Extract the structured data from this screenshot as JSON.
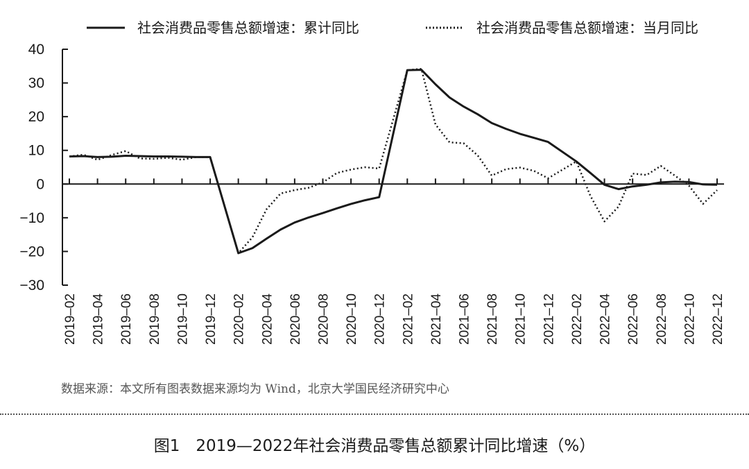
{
  "chart_data": {
    "type": "line",
    "legend_position": "top",
    "x": [
      "2019-02",
      "2019-03",
      "2019-04",
      "2019-05",
      "2019-06",
      "2019-07",
      "2019-08",
      "2019-09",
      "2019-10",
      "2019-11",
      "2019-12",
      "2020-01",
      "2020-02",
      "2020-03",
      "2020-04",
      "2020-05",
      "2020-06",
      "2020-07",
      "2020-08",
      "2020-09",
      "2020-10",
      "2020-11",
      "2020-12",
      "2021-01",
      "2021-02",
      "2021-03",
      "2021-04",
      "2021-05",
      "2021-06",
      "2021-07",
      "2021-08",
      "2021-09",
      "2021-10",
      "2021-11",
      "2021-12",
      "2022-01",
      "2022-02",
      "2022-03",
      "2022-04",
      "2022-05",
      "2022-06",
      "2022-07",
      "2022-08",
      "2022-09",
      "2022-10",
      "2022-11",
      "2022-12"
    ],
    "x_tick_labels": [
      "2019–02",
      "2019–04",
      "2019–06",
      "2019–08",
      "2019–10",
      "2019–12",
      "2020–02",
      "2020–04",
      "2020–06",
      "2020–08",
      "2020–10",
      "2020–12",
      "2021–02",
      "2021–04",
      "2021–06",
      "2021–08",
      "2021–10",
      "2021–12",
      "2022–02",
      "2022–04",
      "2022–06",
      "2022–08",
      "2022–10",
      "2022–12"
    ],
    "y_tick_labels": [
      "40",
      "30",
      "20",
      "10",
      "0",
      "−10",
      "−20",
      "−30"
    ],
    "ylim": [
      -30,
      40
    ],
    "yticks": [
      40,
      30,
      20,
      10,
      0,
      -10,
      -20,
      -30
    ],
    "grid": false,
    "series": [
      {
        "name": "社会消费品零售总额增速：累计同比",
        "style": "solid",
        "color": "#1a1a1a",
        "values": [
          8.2,
          8.3,
          8.0,
          8.1,
          8.4,
          8.3,
          8.2,
          8.2,
          8.1,
          8.0,
          8.0,
          null,
          -20.5,
          -19.0,
          -16.2,
          -13.5,
          -11.4,
          -9.9,
          -8.6,
          -7.2,
          -5.9,
          -4.8,
          -3.9,
          null,
          33.8,
          33.9,
          29.6,
          25.7,
          23.0,
          20.7,
          18.1,
          16.4,
          14.9,
          13.7,
          12.5,
          null,
          6.7,
          3.3,
          -0.2,
          -1.5,
          -0.7,
          -0.2,
          0.5,
          0.7,
          0.6,
          -0.1,
          -0.2
        ]
      },
      {
        "name": "社会消费品零售总额增速：当月同比",
        "style": "dotted",
        "color": "#1a1a1a",
        "values": [
          8.2,
          8.7,
          7.2,
          8.6,
          9.8,
          7.6,
          7.5,
          7.8,
          7.2,
          8.0,
          8.0,
          null,
          -20.5,
          -15.8,
          -7.5,
          -2.8,
          -1.8,
          -1.1,
          0.5,
          3.3,
          4.3,
          5.0,
          4.6,
          null,
          33.8,
          34.2,
          17.7,
          12.4,
          12.1,
          8.5,
          2.5,
          4.4,
          4.9,
          3.9,
          1.7,
          null,
          6.7,
          -3.5,
          -11.1,
          -6.7,
          3.1,
          2.7,
          5.4,
          2.5,
          -0.5,
          -5.9,
          -1.8
        ]
      }
    ]
  },
  "source_note": "数据来源：本文所有图表数据来源均为 Wind，北京大学国民经济研究中心",
  "caption": "图1　2019—2022年社会消费品零售总额累计同比增速（%）"
}
